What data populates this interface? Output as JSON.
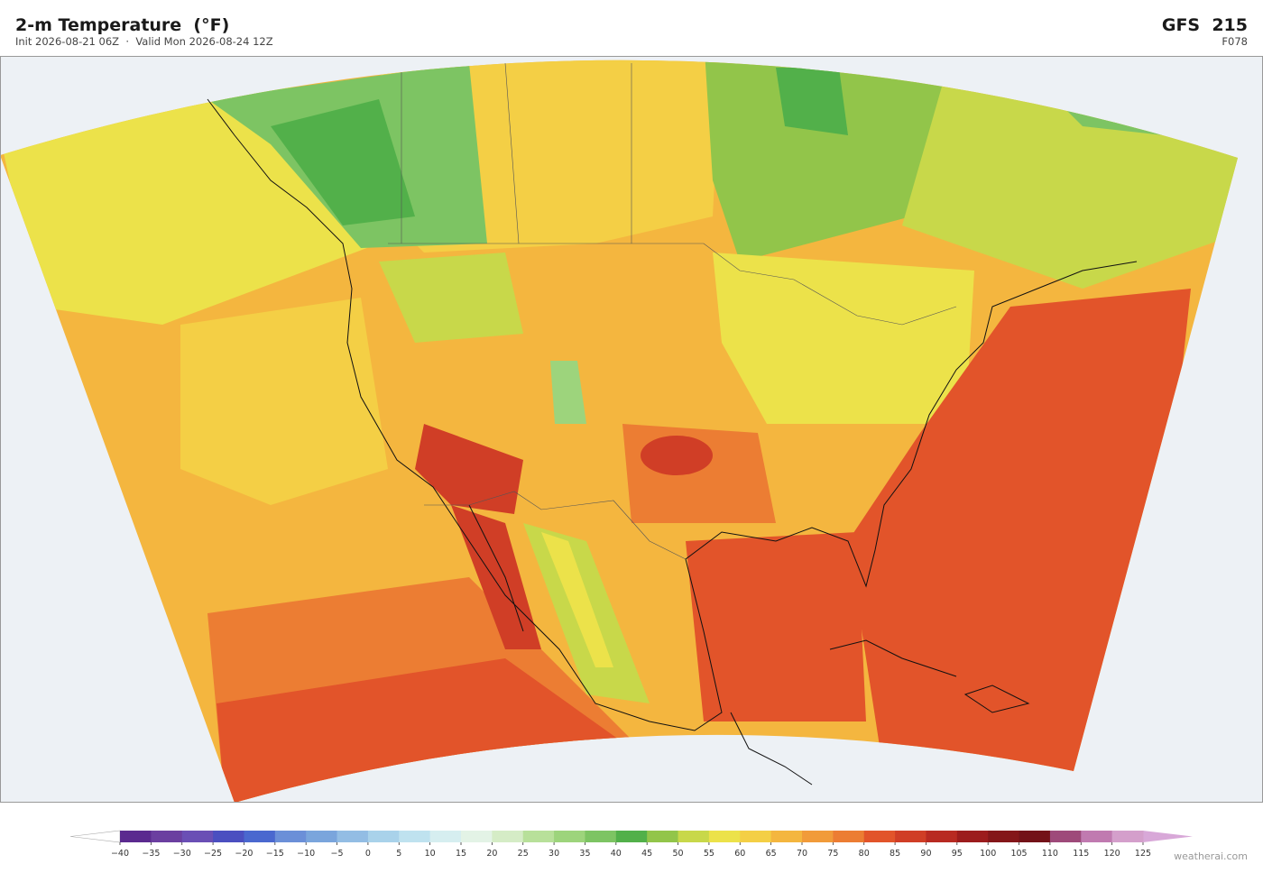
{
  "header": {
    "title": "2-m Temperature  (°F)",
    "subtitle": "Init 2026-08-21 06Z  ·  Valid Mon 2026-08-24 12Z",
    "model": "GFS  215",
    "forecast_hour": "F078"
  },
  "colorbar": {
    "ticks": [
      {
        "value": -40,
        "label": "−40"
      },
      {
        "value": -35,
        "label": "−35"
      },
      {
        "value": -30,
        "label": "−30"
      },
      {
        "value": -25,
        "label": "−25"
      },
      {
        "value": -20,
        "label": "−20"
      },
      {
        "value": -15,
        "label": "−15"
      },
      {
        "value": -10,
        "label": "−10"
      },
      {
        "value": -5,
        "label": "−5"
      },
      0,
      5,
      10,
      15,
      20,
      25,
      30,
      35,
      40,
      45,
      50,
      55,
      60,
      65,
      70,
      75,
      80,
      85,
      90,
      95,
      100,
      105,
      110,
      115,
      120,
      125
    ],
    "colors": [
      "#5b2a8f",
      "#6b3fa0",
      "#6a4fb5",
      "#4b4fc0",
      "#4a68cf",
      "#6b8fd8",
      "#7aa5dc",
      "#93bde4",
      "#a9d2ea",
      "#bfe2ef",
      "#d6eef0",
      "#e3f3e6",
      "#d5ecc6",
      "#b8e09a",
      "#9dd47c",
      "#7dc463",
      "#52b04a",
      "#92c54a",
      "#c8d84a",
      "#ece24a",
      "#f4cf45",
      "#f4b63f",
      "#f19b3a",
      "#ec7d33",
      "#e2542a",
      "#d03e26",
      "#b82a22",
      "#9c1c1d",
      "#841619",
      "#731218",
      "#9e4a7a",
      "#c07ab0",
      "#d49fcb"
    ],
    "under_color": "#ffffff",
    "over_color": "#d8a8d8"
  },
  "watermark": "weatherai.com"
}
